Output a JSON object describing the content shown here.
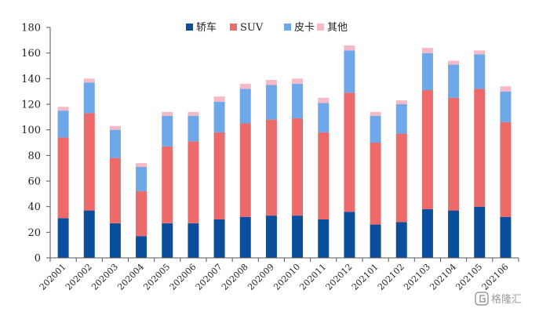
{
  "chart_data": {
    "type": "bar",
    "stacked": true,
    "title": "",
    "xlabel": "",
    "ylabel": "",
    "ylim": [
      0,
      180
    ],
    "yticks": [
      0,
      20,
      40,
      60,
      80,
      100,
      120,
      140,
      160,
      180
    ],
    "grid": false,
    "legend_position": "top-center",
    "categories": [
      "202001",
      "202002",
      "202003",
      "202004",
      "202005",
      "202006",
      "202007",
      "202008",
      "202009",
      "202010",
      "202011",
      "202012",
      "202101",
      "202102",
      "202103",
      "202104",
      "202105",
      "202106"
    ],
    "series": [
      {
        "name": "轿车",
        "color": "#0b4f9c",
        "values": [
          31,
          37,
          27,
          17,
          27,
          27,
          30,
          32,
          33,
          33,
          30,
          36,
          26,
          28,
          38,
          37,
          40,
          32
        ]
      },
      {
        "name": "SUV",
        "color": "#ec6a6a",
        "values": [
          63,
          76,
          51,
          35,
          60,
          64,
          68,
          73,
          75,
          76,
          68,
          93,
          64,
          69,
          93,
          88,
          92,
          74
        ]
      },
      {
        "name": "皮卡",
        "color": "#6fa8e8",
        "values": [
          21,
          24,
          22,
          19,
          24,
          20,
          24,
          27,
          27,
          27,
          23,
          33,
          21,
          23,
          29,
          26,
          27,
          24
        ]
      },
      {
        "name": "其他",
        "color": "#f7b9c6",
        "values": [
          3,
          3,
          3,
          3,
          3,
          3,
          4,
          4,
          4,
          4,
          4,
          4,
          3,
          3,
          4,
          3,
          3,
          4
        ]
      }
    ]
  },
  "watermark": {
    "text": "格隆汇",
    "icon": "gelonghui-logo-icon"
  }
}
